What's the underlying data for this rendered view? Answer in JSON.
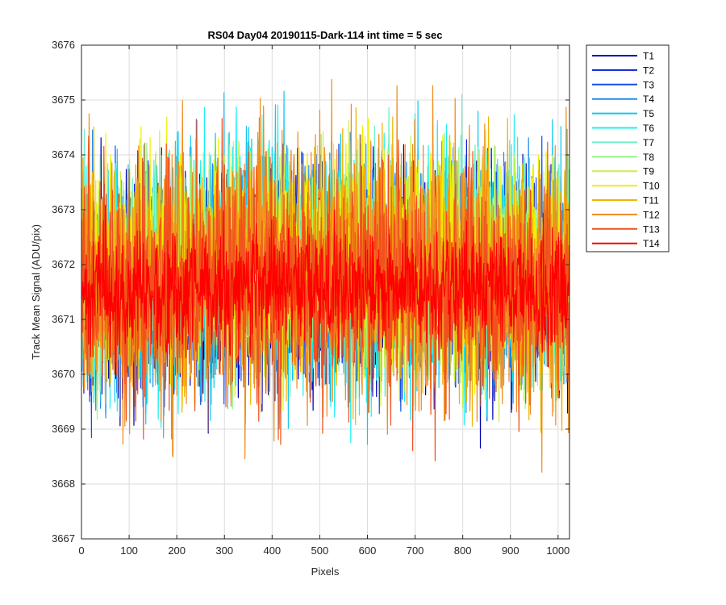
{
  "chart_data": {
    "type": "line",
    "title": "RS04 Day04 20190115-Dark-114 int time = 5 sec",
    "xlabel": "Pixels",
    "ylabel": "Track Mean Signal (ADU/pix)",
    "xlim": [
      0,
      1024
    ],
    "ylim": [
      3667,
      3676
    ],
    "xticks": [
      0,
      100,
      200,
      300,
      400,
      500,
      600,
      700,
      800,
      900,
      1000
    ],
    "yticks": [
      3667,
      3668,
      3669,
      3670,
      3671,
      3672,
      3673,
      3674,
      3675,
      3676
    ],
    "grid": true,
    "legend_position": "outside-top-right",
    "n_points_per_series": 1024,
    "series": [
      {
        "name": "T1",
        "color": "#0000b4",
        "mean": 3671.6,
        "noise_range": [
          3667.9,
          3674.4
        ]
      },
      {
        "name": "T2",
        "color": "#0a1ed2",
        "mean": 3671.6,
        "noise_range": [
          3668.3,
          3674.3
        ]
      },
      {
        "name": "T3",
        "color": "#1450e6",
        "mean": 3671.6,
        "noise_range": [
          3668.5,
          3674.5
        ]
      },
      {
        "name": "T4",
        "color": "#1e8cf0",
        "mean": 3671.7,
        "noise_range": [
          3668.6,
          3674.8
        ]
      },
      {
        "name": "T5",
        "color": "#14c8f0",
        "mean": 3671.7,
        "noise_range": [
          3668.2,
          3675.4
        ]
      },
      {
        "name": "T6",
        "color": "#1ef0f0",
        "mean": 3671.7,
        "noise_range": [
          3668.7,
          3675.8
        ]
      },
      {
        "name": "T7",
        "color": "#6ef0c8",
        "mean": 3671.8,
        "noise_range": [
          3668.9,
          3675.2
        ]
      },
      {
        "name": "T8",
        "color": "#96f58c",
        "mean": 3671.8,
        "noise_range": [
          3668.9,
          3675.0
        ]
      },
      {
        "name": "T9",
        "color": "#c8f046",
        "mean": 3671.8,
        "noise_range": [
          3668.8,
          3675.0
        ]
      },
      {
        "name": "T10",
        "color": "#f0f000",
        "mean": 3671.8,
        "noise_range": [
          3668.7,
          3675.0
        ]
      },
      {
        "name": "T11",
        "color": "#f0b400",
        "mean": 3671.7,
        "noise_range": [
          3668.5,
          3675.0
        ]
      },
      {
        "name": "T12",
        "color": "#f08c1e",
        "mean": 3671.6,
        "noise_range": [
          3667.6,
          3675.5
        ]
      },
      {
        "name": "T13",
        "color": "#f0501e",
        "mean": 3671.5,
        "noise_range": [
          3667.9,
          3674.7
        ]
      },
      {
        "name": "T14",
        "color": "#ff0000",
        "mean": 3671.4,
        "noise_range": [
          3669.6,
          3673.2
        ]
      }
    ]
  }
}
